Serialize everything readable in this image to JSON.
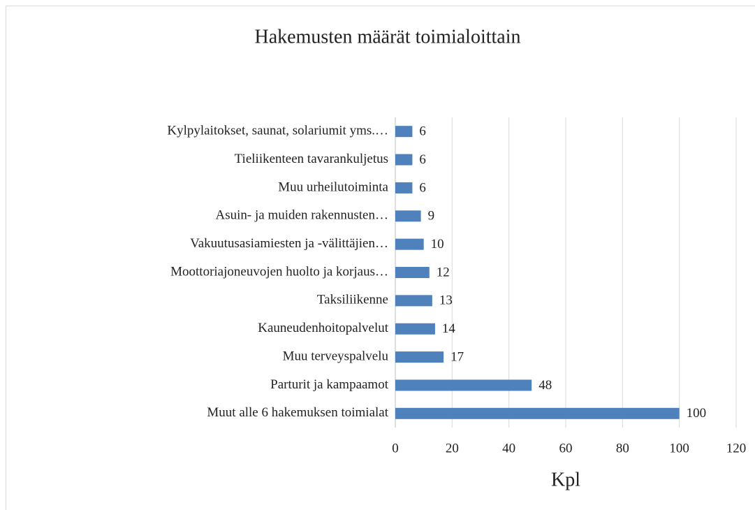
{
  "chart_data": {
    "type": "barh",
    "title": "Hakemusten määrät toimialoittain",
    "categories": [
      "Kylpylaitokset, saunat, solariumit yms.…",
      "Tieliikenteen tavarankuljetus",
      "Muu urheilutoiminta",
      "Asuin- ja muiden rakennusten…",
      "Vakuutusasiamiesten ja -välittäjien…",
      "Moottoriajoneuvojen huolto ja korjaus…",
      "Taksiliikenne",
      "Kauneudenhoitopalvelut",
      "Muu terveyspalvelu",
      "Parturit ja kampaamot",
      "Muut alle 6 hakemuksen toimialat"
    ],
    "values": [
      6,
      6,
      6,
      9,
      10,
      12,
      13,
      14,
      17,
      48,
      100
    ],
    "color": "#4f81bd",
    "xlabel": "Kpl",
    "xlim": [
      0,
      120
    ],
    "xticks": [
      0,
      20,
      40,
      60,
      80,
      100,
      120
    ],
    "grid": true
  }
}
